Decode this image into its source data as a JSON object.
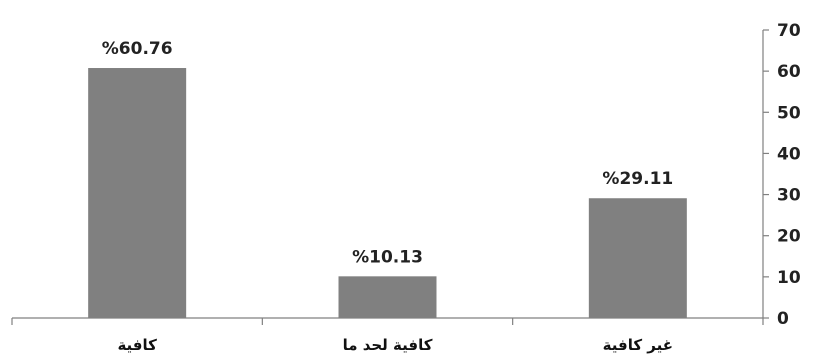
{
  "chart_data": {
    "type": "bar",
    "categories": [
      "كافية",
      "كافية لحد ما",
      "غير كافية"
    ],
    "values": [
      60.76,
      10.13,
      29.11
    ],
    "data_labels": [
      "%60.76",
      "%10.13",
      "%29.11"
    ],
    "title": "",
    "xlabel": "",
    "ylabel": "",
    "ylim": [
      0,
      70
    ],
    "yticks": [
      "0",
      "10",
      "20",
      "30",
      "40",
      "50",
      "60",
      "70"
    ],
    "y_axis_side": "right",
    "grid": false,
    "legend": "none",
    "bar_color": "#808080"
  }
}
